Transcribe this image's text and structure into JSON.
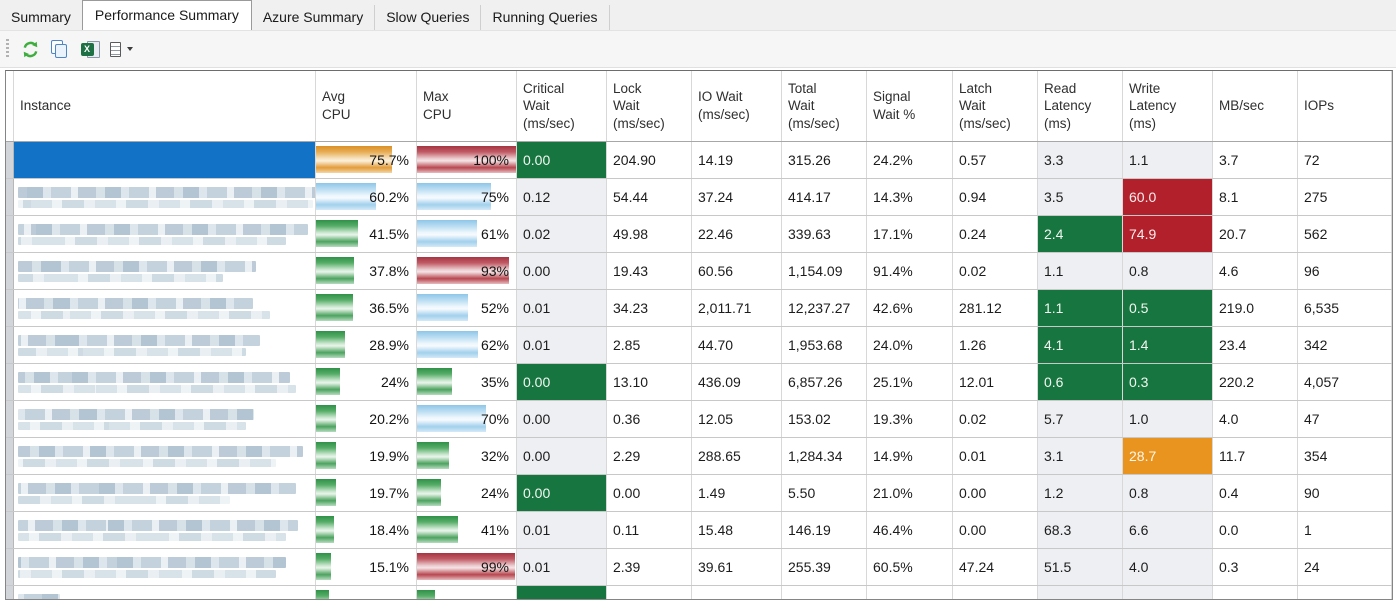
{
  "tabs": [
    {
      "label": "Summary",
      "active": false
    },
    {
      "label": "Performance Summary",
      "active": true
    },
    {
      "label": "Azure Summary",
      "active": false
    },
    {
      "label": "Slow Queries",
      "active": false
    },
    {
      "label": "Running Queries",
      "active": false
    }
  ],
  "toolbar": {
    "buttons": [
      {
        "icon": "refresh-icon"
      },
      {
        "icon": "copy-icon"
      },
      {
        "icon": "export-excel-icon"
      },
      {
        "icon": "column-chooser-icon"
      }
    ]
  },
  "table": {
    "columns": [
      "Instance",
      "Avg\nCPU",
      "Max\nCPU",
      "Critical\nWait\n(ms/sec)",
      "Lock\nWait\n(ms/sec)",
      "IO Wait\n(ms/sec)",
      "Total\nWait\n(ms/sec)",
      "Signal\nWait %",
      "Latch\nWait\n(ms/sec)",
      "Read\nLatency\n(ms)",
      "Write\nLatency\n(ms)",
      "MB/sec",
      "IOPs"
    ],
    "rows": [
      {
        "selected": true,
        "instance_redacted": true,
        "blur": null,
        "avg_cpu": {
          "text": "75.7%",
          "pct": 75.7,
          "bar": "orange"
        },
        "max_cpu": {
          "text": "100%",
          "pct": 100,
          "bar": "red"
        },
        "critical_wait": {
          "text": "0.00",
          "bg": "green"
        },
        "lock_wait": "204.90",
        "io_wait": "14.19",
        "total_wait": "315.26",
        "signal_wait_pct": "24.2%",
        "latch_wait": "0.57",
        "read_latency": {
          "text": "3.3"
        },
        "write_latency": {
          "text": "1.1"
        },
        "mb_sec": "3.7",
        "iops": "72"
      },
      {
        "selected": false,
        "instance_redacted": true,
        "blur": {
          "w1": 298,
          "w2": 295
        },
        "avg_cpu": {
          "text": "60.2%",
          "pct": 60.2,
          "bar": "blue"
        },
        "max_cpu": {
          "text": "75%",
          "pct": 75,
          "bar": "blue"
        },
        "critical_wait": {
          "text": "0.12"
        },
        "lock_wait": "54.44",
        "io_wait": "37.24",
        "total_wait": "414.17",
        "signal_wait_pct": "14.3%",
        "latch_wait": "0.94",
        "read_latency": {
          "text": "3.5"
        },
        "write_latency": {
          "text": "60.0",
          "bg": "red"
        },
        "mb_sec": "8.1",
        "iops": "275"
      },
      {
        "selected": false,
        "instance_redacted": true,
        "blur": {
          "w1": 290,
          "w2": 268
        },
        "avg_cpu": {
          "text": "41.5%",
          "pct": 41.5,
          "bar": "green"
        },
        "max_cpu": {
          "text": "61%",
          "pct": 61,
          "bar": "blue"
        },
        "critical_wait": {
          "text": "0.02"
        },
        "lock_wait": "49.98",
        "io_wait": "22.46",
        "total_wait": "339.63",
        "signal_wait_pct": "17.1%",
        "latch_wait": "0.24",
        "read_latency": {
          "text": "2.4",
          "bg": "green"
        },
        "write_latency": {
          "text": "74.9",
          "bg": "red"
        },
        "mb_sec": "20.7",
        "iops": "562"
      },
      {
        "selected": false,
        "instance_redacted": true,
        "blur": {
          "w1": 238,
          "w2": 205
        },
        "avg_cpu": {
          "text": "37.8%",
          "pct": 37.8,
          "bar": "green"
        },
        "max_cpu": {
          "text": "93%",
          "pct": 93,
          "bar": "red"
        },
        "critical_wait": {
          "text": "0.00"
        },
        "lock_wait": "19.43",
        "io_wait": "60.56",
        "total_wait": "1,154.09",
        "signal_wait_pct": "91.4%",
        "latch_wait": "0.02",
        "read_latency": {
          "text": "1.1"
        },
        "write_latency": {
          "text": "0.8"
        },
        "mb_sec": "4.6",
        "iops": "96"
      },
      {
        "selected": false,
        "instance_redacted": true,
        "blur": {
          "w1": 235,
          "w2": 252
        },
        "avg_cpu": {
          "text": "36.5%",
          "pct": 36.5,
          "bar": "green"
        },
        "max_cpu": {
          "text": "52%",
          "pct": 52,
          "bar": "blue"
        },
        "critical_wait": {
          "text": "0.01"
        },
        "lock_wait": "34.23",
        "io_wait": "2,011.71",
        "total_wait": "12,237.27",
        "signal_wait_pct": "42.6%",
        "latch_wait": "281.12",
        "read_latency": {
          "text": "1.1",
          "bg": "green"
        },
        "write_latency": {
          "text": "0.5",
          "bg": "green"
        },
        "mb_sec": "219.0",
        "iops": "6,535"
      },
      {
        "selected": false,
        "instance_redacted": true,
        "blur": {
          "w1": 242,
          "w2": 228
        },
        "avg_cpu": {
          "text": "28.9%",
          "pct": 28.9,
          "bar": "green"
        },
        "max_cpu": {
          "text": "62%",
          "pct": 62,
          "bar": "blue"
        },
        "critical_wait": {
          "text": "0.01"
        },
        "lock_wait": "2.85",
        "io_wait": "44.70",
        "total_wait": "1,953.68",
        "signal_wait_pct": "24.0%",
        "latch_wait": "1.26",
        "read_latency": {
          "text": "4.1",
          "bg": "green"
        },
        "write_latency": {
          "text": "1.4",
          "bg": "green"
        },
        "mb_sec": "23.4",
        "iops": "342"
      },
      {
        "selected": false,
        "instance_redacted": true,
        "blur": {
          "w1": 272,
          "w2": 278
        },
        "avg_cpu": {
          "text": "24%",
          "pct": 24,
          "bar": "green"
        },
        "max_cpu": {
          "text": "35%",
          "pct": 35,
          "bar": "green"
        },
        "critical_wait": {
          "text": "0.00",
          "bg": "green"
        },
        "lock_wait": "13.10",
        "io_wait": "436.09",
        "total_wait": "6,857.26",
        "signal_wait_pct": "25.1%",
        "latch_wait": "12.01",
        "read_latency": {
          "text": "0.6",
          "bg": "green"
        },
        "write_latency": {
          "text": "0.3",
          "bg": "green"
        },
        "mb_sec": "220.2",
        "iops": "4,057"
      },
      {
        "selected": false,
        "instance_redacted": true,
        "blur": {
          "w1": 236,
          "w2": 228
        },
        "avg_cpu": {
          "text": "20.2%",
          "pct": 20.2,
          "bar": "green"
        },
        "max_cpu": {
          "text": "70%",
          "pct": 70,
          "bar": "blue"
        },
        "critical_wait": {
          "text": "0.00"
        },
        "lock_wait": "0.36",
        "io_wait": "12.05",
        "total_wait": "153.02",
        "signal_wait_pct": "19.3%",
        "latch_wait": "0.02",
        "read_latency": {
          "text": "5.7"
        },
        "write_latency": {
          "text": "1.0"
        },
        "mb_sec": "4.0",
        "iops": "47"
      },
      {
        "selected": false,
        "instance_redacted": true,
        "blur": {
          "w1": 285,
          "w2": 258
        },
        "avg_cpu": {
          "text": "19.9%",
          "pct": 19.9,
          "bar": "green"
        },
        "max_cpu": {
          "text": "32%",
          "pct": 32,
          "bar": "green"
        },
        "critical_wait": {
          "text": "0.00"
        },
        "lock_wait": "2.29",
        "io_wait": "288.65",
        "total_wait": "1,284.34",
        "signal_wait_pct": "14.9%",
        "latch_wait": "0.01",
        "read_latency": {
          "text": "3.1"
        },
        "write_latency": {
          "text": "28.7",
          "bg": "orange"
        },
        "mb_sec": "11.7",
        "iops": "354"
      },
      {
        "selected": false,
        "instance_redacted": true,
        "blur": {
          "w1": 278,
          "w2": 212
        },
        "avg_cpu": {
          "text": "19.7%",
          "pct": 19.7,
          "bar": "green"
        },
        "max_cpu": {
          "text": "24%",
          "pct": 24,
          "bar": "green"
        },
        "critical_wait": {
          "text": "0.00",
          "bg": "green"
        },
        "lock_wait": "0.00",
        "io_wait": "1.49",
        "total_wait": "5.50",
        "signal_wait_pct": "21.0%",
        "latch_wait": "0.00",
        "read_latency": {
          "text": "1.2"
        },
        "write_latency": {
          "text": "0.8"
        },
        "mb_sec": "0.4",
        "iops": "90"
      },
      {
        "selected": false,
        "instance_redacted": true,
        "blur": {
          "w1": 280,
          "w2": 268
        },
        "avg_cpu": {
          "text": "18.4%",
          "pct": 18.4,
          "bar": "green"
        },
        "max_cpu": {
          "text": "41%",
          "pct": 41,
          "bar": "green"
        },
        "critical_wait": {
          "text": "0.01"
        },
        "lock_wait": "0.11",
        "io_wait": "15.48",
        "total_wait": "146.19",
        "signal_wait_pct": "46.4%",
        "latch_wait": "0.00",
        "read_latency": {
          "text": "68.3"
        },
        "write_latency": {
          "text": "6.6"
        },
        "mb_sec": "0.0",
        "iops": "1"
      },
      {
        "selected": false,
        "instance_redacted": true,
        "blur": {
          "w1": 268,
          "w2": 258
        },
        "avg_cpu": {
          "text": "15.1%",
          "pct": 15.1,
          "bar": "green"
        },
        "max_cpu": {
          "text": "99%",
          "pct": 99,
          "bar": "red"
        },
        "critical_wait": {
          "text": "0.01"
        },
        "lock_wait": "2.39",
        "io_wait": "39.61",
        "total_wait": "255.39",
        "signal_wait_pct": "60.5%",
        "latch_wait": "47.24",
        "read_latency": {
          "text": "51.5"
        },
        "write_latency": {
          "text": "4.0"
        },
        "mb_sec": "0.3",
        "iops": "24"
      },
      {
        "selected": false,
        "partial": true,
        "instance_redacted": true,
        "blur": {
          "w1": 42,
          "w2": 0
        },
        "avg_cpu": {
          "text": "",
          "pct": 13,
          "bar": "green"
        },
        "max_cpu": {
          "text": "",
          "pct": 18,
          "bar": "green"
        },
        "critical_wait": {
          "text": "",
          "bg": "green"
        },
        "lock_wait": "",
        "io_wait": "",
        "total_wait": "",
        "signal_wait_pct": "",
        "latch_wait": "",
        "read_latency": {
          "text": ""
        },
        "write_latency": {
          "text": ""
        },
        "mb_sec": "",
        "iops": ""
      }
    ]
  }
}
